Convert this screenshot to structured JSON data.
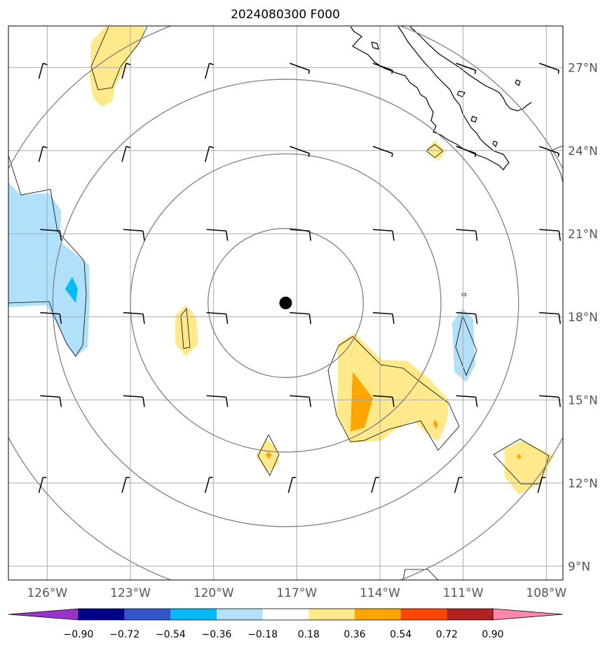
{
  "title": "2024080300 F000",
  "lon_ticks": [
    {
      "lon": -126,
      "label": "126°W"
    },
    {
      "lon": -123,
      "label": "123°W"
    },
    {
      "lon": -120,
      "label": "120°W"
    },
    {
      "lon": -117,
      "label": "117°W"
    },
    {
      "lon": -114,
      "label": "114°W"
    },
    {
      "lon": -111,
      "label": "111°W"
    },
    {
      "lon": -108,
      "label": "108°W"
    }
  ],
  "lat_ticks": [
    {
      "lat": 27,
      "label": "27°N"
    },
    {
      "lat": 24,
      "label": "24°N"
    },
    {
      "lat": 21,
      "label": "21°N"
    },
    {
      "lat": 18,
      "label": "18°N"
    },
    {
      "lat": 15,
      "label": "15°N"
    },
    {
      "lat": 12,
      "label": "12°N"
    },
    {
      "lat": 9,
      "label": "9°N"
    }
  ],
  "extent": {
    "lon_min": -127.4,
    "lon_max": -107.4,
    "lat_min": 8.5,
    "lat_max": 28.5
  },
  "center": {
    "lon": -117.4,
    "lat": 18.5
  },
  "range_rings_deg": [
    2.8,
    5.6,
    8.4,
    11.2
  ],
  "colorbar": {
    "labels": [
      "−0.90",
      "−0.72",
      "−0.54",
      "−0.36",
      "−0.18",
      "0.18",
      "0.36",
      "0.54",
      "0.72",
      "0.90"
    ],
    "colors": [
      "#9933cc",
      "#00008b",
      "#3355cc",
      "#00bbf5",
      "#b0e0fa",
      "#ffffff",
      "#ffe98a",
      "#ffa500",
      "#ff4500",
      "#b22222",
      "#ff88aa"
    ]
  },
  "colors": {
    "ring": "#808080",
    "grid": "#aaaaaa",
    "coast": "#000000",
    "center": "#000000"
  }
}
